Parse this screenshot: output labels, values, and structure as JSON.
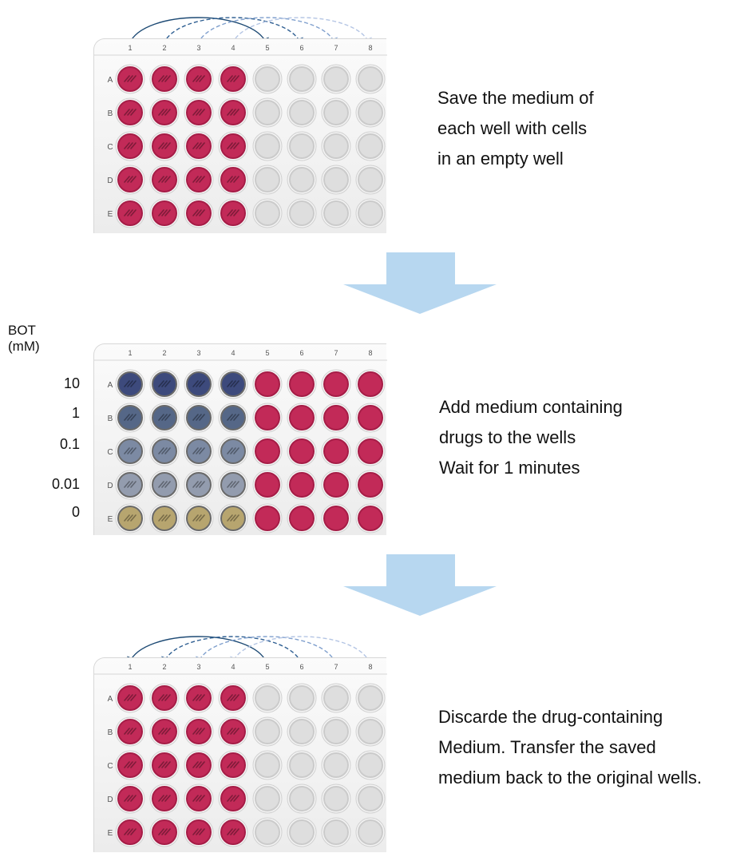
{
  "colors": {
    "medium": "#c22a58",
    "empty": "#d3d3d3",
    "arrow_fill": "#b7d7f0",
    "arc_colors": [
      "#1d4a74",
      "#2f5f92",
      "#7f9fcd",
      "#b4c5e4"
    ],
    "drug": [
      "#3d4a7c",
      "#556787",
      "#7c8aa3",
      "#939cae",
      "#b7a56f"
    ]
  },
  "plate": {
    "columns": [
      "1",
      "2",
      "3",
      "4",
      "5",
      "6",
      "7",
      "8"
    ],
    "rows": [
      "A",
      "B",
      "C",
      "D",
      "E"
    ]
  },
  "steps": [
    {
      "lines": [
        "Save the medium of",
        "each well with cells",
        "in an empty well"
      ]
    },
    {
      "concentration_title": "BOT (mM)",
      "concentrations": [
        "10",
        "1",
        "0.1",
        "0.01",
        "0"
      ],
      "lines": [
        "Add medium containing",
        "drugs to the wells",
        "Wait for 1 minutes"
      ]
    },
    {
      "lines": [
        "Discarde the drug-containing",
        "Medium. Transfer the saved",
        "medium back to the original wells."
      ]
    }
  ]
}
